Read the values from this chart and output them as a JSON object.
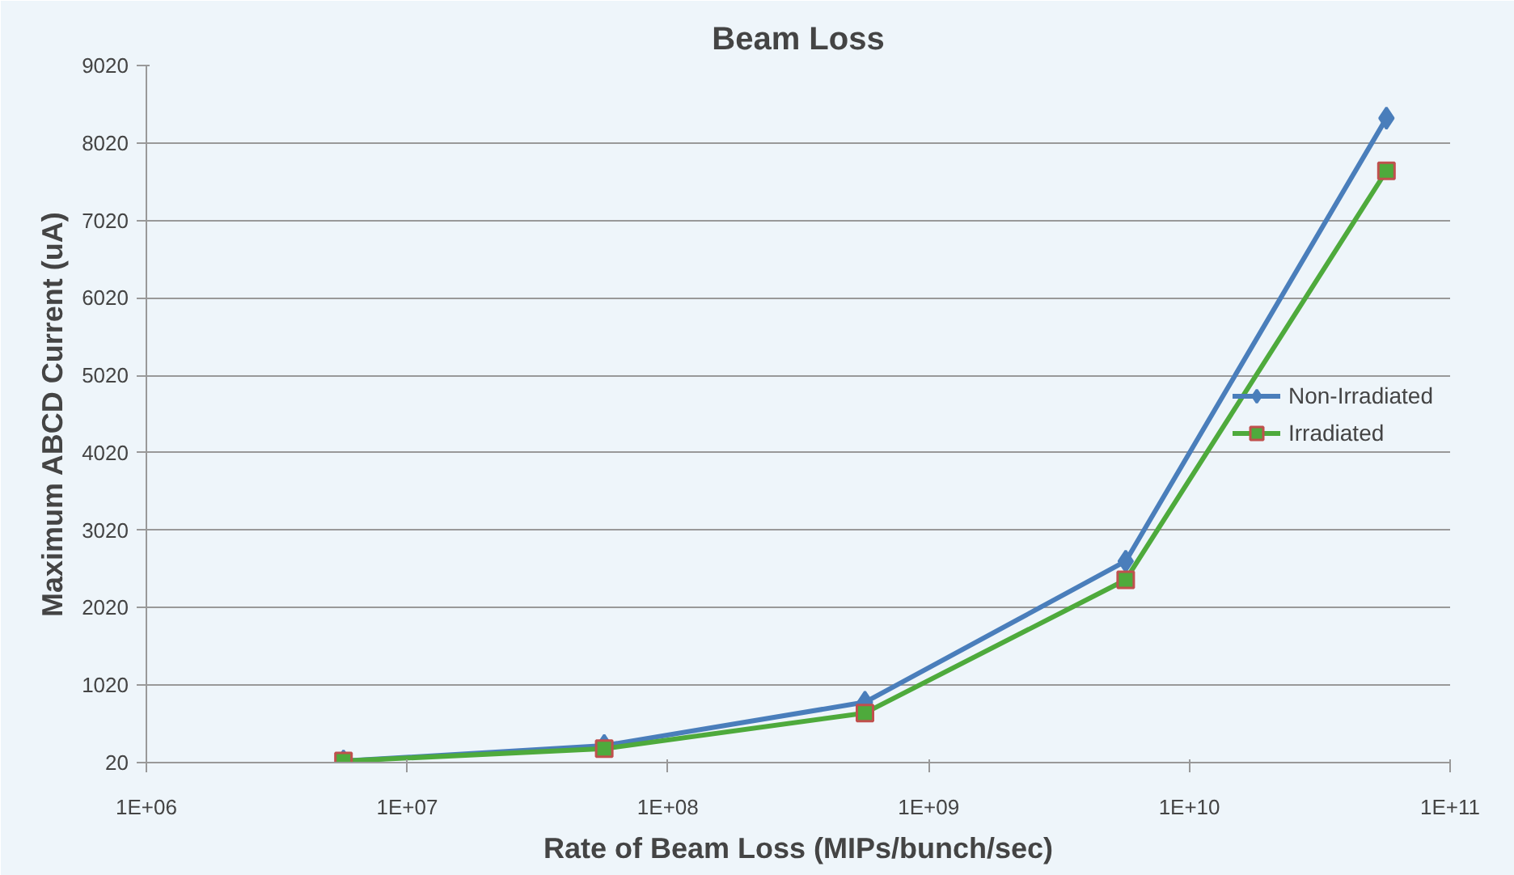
{
  "chart_data": {
    "type": "line",
    "title": "Beam Loss",
    "xlabel": "Rate of Beam Loss (MIPs/bunch/sec)",
    "ylabel": "Maximum ABCD Current (uA)",
    "log": "x",
    "x": [
      5700000.0,
      57000000.0,
      570000000.0,
      5700000000.0,
      57000000000.0
    ],
    "series": [
      {
        "name": "Non-Irradiated",
        "color": "#4a7ebb",
        "marker": "diamond",
        "values": [
          40,
          240,
          800,
          2620,
          8340
        ]
      },
      {
        "name": "Irradiated",
        "color": "#4eaa3c",
        "marker": "square",
        "values": [
          40,
          200,
          660,
          2380,
          7660
        ]
      }
    ],
    "xlim": [
      1000000.0,
      100000000000.0
    ],
    "xticks": [
      {
        "value": 1000000.0,
        "label": "1E+06"
      },
      {
        "value": 10000000.0,
        "label": "1E+07"
      },
      {
        "value": 100000000.0,
        "label": "1E+08"
      },
      {
        "value": 1000000000.0,
        "label": "1E+09"
      },
      {
        "value": 10000000000.0,
        "label": "1E+10"
      },
      {
        "value": 100000000000.0,
        "label": "1E+11"
      }
    ],
    "ylim": [
      20,
      9020
    ],
    "yticks": [
      20,
      1020,
      2020,
      3020,
      4020,
      5020,
      6020,
      7020,
      8020,
      9020
    ],
    "grid": "y",
    "legend": "right"
  }
}
